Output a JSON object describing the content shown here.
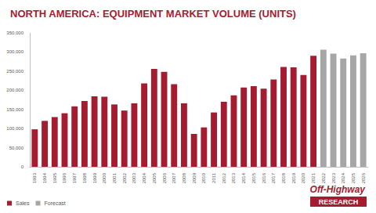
{
  "chart_data": {
    "type": "bar",
    "title": "NORTH AMERICA: EQUIPMENT MARKET VOLUME (UNITS)",
    "categories": [
      "1993",
      "1994",
      "1995",
      "1996",
      "1997",
      "1998",
      "1999",
      "2000",
      "2001",
      "2002",
      "2003",
      "2004",
      "2005",
      "2006",
      "2007",
      "2008",
      "2009",
      "2010",
      "2011",
      "2012",
      "2013",
      "2014",
      "2015",
      "2016",
      "2017",
      "2018",
      "2019",
      "2020",
      "2021",
      "2022",
      "2023",
      "2024",
      "2025",
      "2026"
    ],
    "series": [
      {
        "name": "Sales",
        "color": "#a51c30",
        "values": [
          98000,
          120000,
          130000,
          140000,
          158000,
          172000,
          184000,
          183000,
          163000,
          147000,
          166000,
          218000,
          256000,
          248000,
          216000,
          166000,
          86000,
          103000,
          142000,
          170000,
          187000,
          207000,
          211000,
          204000,
          228000,
          261000,
          260000,
          240000,
          290000,
          null,
          null,
          null,
          null,
          null
        ]
      },
      {
        "name": "Forecast",
        "color": "#a6a6a6",
        "values": [
          null,
          null,
          null,
          null,
          null,
          null,
          null,
          null,
          null,
          null,
          null,
          null,
          null,
          null,
          null,
          null,
          null,
          null,
          null,
          null,
          null,
          null,
          null,
          null,
          null,
          null,
          null,
          null,
          null,
          306000,
          296000,
          283000,
          291000,
          297000
        ]
      }
    ],
    "ylim": [
      0,
      350000
    ],
    "yticks": [
      0,
      {
        "value": 50000,
        "label": "50,000"
      },
      {
        "value": 100000,
        "label": "100,000"
      },
      {
        "value": 150000,
        "label": "150,000"
      },
      {
        "value": 200000,
        "label": "200,000"
      },
      {
        "value": 250000,
        "label": "250,000"
      },
      {
        "value": 300000,
        "label": "300,000"
      },
      {
        "value": 350000,
        "label": "350,000"
      }
    ],
    "grid": false,
    "legend": "lower left",
    "annotations": [
      "Off-Highway",
      "RESEARCH"
    ]
  }
}
